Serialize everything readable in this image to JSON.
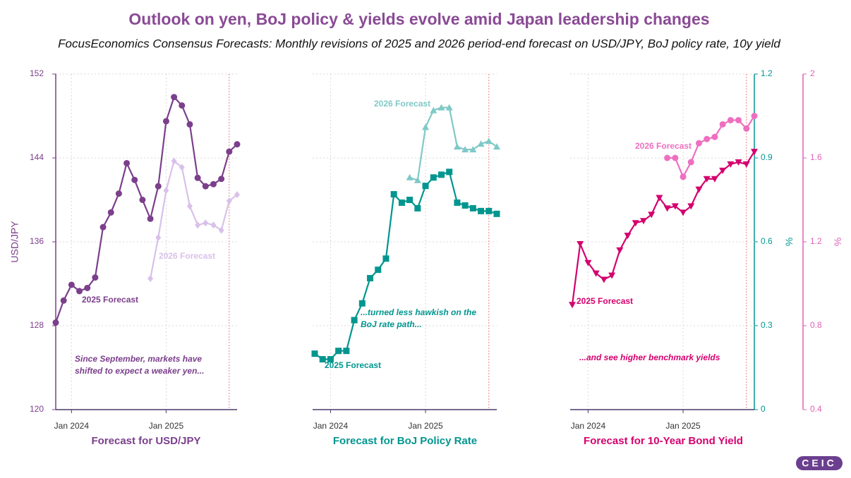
{
  "title": "Outlook on yen, BoJ policy & yields evolve amid Japan leadership changes",
  "subtitle": "FocusEconomics Consensus Forecasts: Monthly revisions of 2025 and 2026 period-end forecast on USD/JPY, BoJ policy rate, 10y yield",
  "logo": "CEIC",
  "chart_data": [
    {
      "type": "line",
      "title": "Forecast for USD/JPY",
      "ylabel": "USD/JPY",
      "axis_color": "#7b3f8c",
      "x": [
        "2023-11",
        "2023-12",
        "2024-01",
        "2024-02",
        "2024-03",
        "2024-04",
        "2024-05",
        "2024-06",
        "2024-07",
        "2024-08",
        "2024-09",
        "2024-10",
        "2024-11",
        "2024-12",
        "2025-01",
        "2025-02",
        "2025-03",
        "2025-04",
        "2025-05",
        "2025-06",
        "2025-07",
        "2025-08",
        "2025-09",
        "2025-10"
      ],
      "xlim": [
        "2023-11",
        "2025-10"
      ],
      "xticks": [
        {
          "value": "2024-01",
          "label": "Jan 2024"
        },
        {
          "value": "2025-01",
          "label": "Jan 2025"
        }
      ],
      "ylim": [
        120,
        152
      ],
      "yticks": [
        120,
        128,
        136,
        144,
        152
      ],
      "grid": true,
      "reference_line": "2025-09",
      "series": [
        {
          "name": "2025 Forecast",
          "color": "#7b3f8c",
          "marker": "circle",
          "values": [
            128.3,
            130.4,
            131.9,
            131.3,
            131.6,
            132.6,
            137.4,
            138.8,
            140.6,
            143.5,
            141.9,
            140.0,
            138.2,
            141.3,
            147.5,
            149.8,
            149.0,
            147.2,
            142.1,
            141.3,
            141.5,
            142.0,
            144.6,
            145.3
          ]
        },
        {
          "name": "2026 Forecast",
          "color": "#d9c1ea",
          "marker": "diamond",
          "values": [
            null,
            null,
            null,
            null,
            null,
            null,
            null,
            null,
            null,
            null,
            null,
            null,
            132.5,
            136.4,
            140.9,
            143.7,
            143.1,
            139.4,
            137.6,
            137.8,
            137.6,
            137.1,
            139.9,
            140.5
          ]
        }
      ],
      "annotation": [
        "Since September, markets have",
        "shifted to expect a weaker yen..."
      ]
    },
    {
      "type": "line",
      "title": "Forecast for BoJ Policy Rate",
      "ylabel": "%",
      "axis_color": "#00968f",
      "x": [
        "2023-11",
        "2023-12",
        "2024-01",
        "2024-02",
        "2024-03",
        "2024-04",
        "2024-05",
        "2024-06",
        "2024-07",
        "2024-08",
        "2024-09",
        "2024-10",
        "2024-11",
        "2024-12",
        "2025-01",
        "2025-02",
        "2025-03",
        "2025-04",
        "2025-05",
        "2025-06",
        "2025-07",
        "2025-08",
        "2025-09",
        "2025-10"
      ],
      "xlim": [
        "2023-11",
        "2025-10"
      ],
      "xticks": [
        {
          "value": "2024-01",
          "label": "Jan 2024"
        },
        {
          "value": "2025-01",
          "label": "Jan 2025"
        }
      ],
      "ylim": [
        0,
        1.2
      ],
      "yticks": [
        0,
        0.3,
        0.6,
        0.9,
        1.2
      ],
      "grid": true,
      "reference_line": "2025-09",
      "series": [
        {
          "name": "2025 Forecast",
          "color": "#00968f",
          "marker": "square",
          "values": [
            0.2,
            0.18,
            0.18,
            0.21,
            0.21,
            0.32,
            0.38,
            0.47,
            0.5,
            0.54,
            0.77,
            0.74,
            0.75,
            0.72,
            0.8,
            0.83,
            0.84,
            0.85,
            0.74,
            0.73,
            0.72,
            0.71,
            0.71,
            0.7
          ]
        },
        {
          "name": "2026 Forecast",
          "color": "#7fc9c7",
          "marker": "triangle",
          "values": [
            null,
            null,
            null,
            null,
            null,
            null,
            null,
            null,
            null,
            null,
            null,
            null,
            0.83,
            0.82,
            1.01,
            1.07,
            1.08,
            1.08,
            0.94,
            0.93,
            0.93,
            0.95,
            0.96,
            0.94
          ]
        }
      ],
      "annotation": [
        "...turned less hawkish on the",
        "BoJ rate path..."
      ]
    },
    {
      "type": "line",
      "title": "Forecast for 10-Year Bond Yield",
      "ylabel": "%",
      "axis_color": "#e060b8",
      "x": [
        "2023-11",
        "2023-12",
        "2024-01",
        "2024-02",
        "2024-03",
        "2024-04",
        "2024-05",
        "2024-06",
        "2024-07",
        "2024-08",
        "2024-09",
        "2024-10",
        "2024-11",
        "2024-12",
        "2025-01",
        "2025-02",
        "2025-03",
        "2025-04",
        "2025-05",
        "2025-06",
        "2025-07",
        "2025-08",
        "2025-09",
        "2025-10"
      ],
      "xlim": [
        "2023-11",
        "2025-10"
      ],
      "xticks": [
        {
          "value": "2024-01",
          "label": "Jan 2024"
        },
        {
          "value": "2025-01",
          "label": "Jan 2025"
        }
      ],
      "ylim": [
        0.4,
        2
      ],
      "yticks": [
        0.4,
        0.8,
        1.2,
        1.6,
        2
      ],
      "grid": true,
      "reference_line": "2025-09",
      "series": [
        {
          "name": "2025 Forecast",
          "color": "#d4006e",
          "marker": "triangle-down",
          "values": [
            0.9,
            1.19,
            1.1,
            1.05,
            1.02,
            1.04,
            1.16,
            1.23,
            1.29,
            1.3,
            1.33,
            1.41,
            1.36,
            1.37,
            1.34,
            1.37,
            1.45,
            1.5,
            1.5,
            1.54,
            1.57,
            1.58,
            1.57,
            1.63
          ]
        },
        {
          "name": "2026 Forecast",
          "color": "#ee6fc0",
          "marker": "circle",
          "values": [
            null,
            null,
            null,
            null,
            null,
            null,
            null,
            null,
            null,
            null,
            null,
            null,
            1.6,
            1.6,
            1.51,
            1.58,
            1.67,
            1.69,
            1.7,
            1.76,
            1.78,
            1.78,
            1.74,
            1.8
          ]
        }
      ],
      "annotation": [
        "...and see higher benchmark yields"
      ]
    }
  ]
}
